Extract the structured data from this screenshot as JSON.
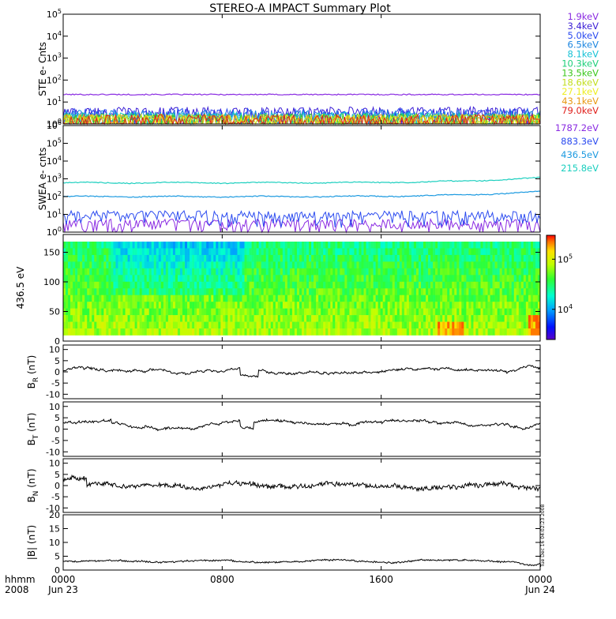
{
  "title": "STEREO-A IMPACT Summary Plot",
  "chart_data": [
    {
      "type": "line",
      "name": "ste",
      "ylabel": "STE e- Cnts",
      "yscale": "log",
      "ylim": [
        1,
        100000
      ],
      "yticks": [
        {
          "base": "10",
          "exp": "0"
        },
        {
          "base": "10",
          "exp": "1"
        },
        {
          "base": "10",
          "exp": "2"
        },
        {
          "base": "10",
          "exp": "3"
        },
        {
          "base": "10",
          "exp": "4"
        },
        {
          "base": "10",
          "exp": "5"
        }
      ],
      "series": [
        {
          "name": "1.9keV",
          "color": "#8a2be2",
          "level": 22
        },
        {
          "name": "3.4keV",
          "color": "#3b1fd6",
          "level": 2.2
        },
        {
          "name": "5.0keV",
          "color": "#2b4bf0",
          "level": 1.9
        },
        {
          "name": "6.5keV",
          "color": "#1c86e0",
          "level": 1.6
        },
        {
          "name": "8.1keV",
          "color": "#17c2d6",
          "level": 1.3
        },
        {
          "name": "10.3keV",
          "color": "#1ecf7a",
          "level": 1.15
        },
        {
          "name": "13.5keV",
          "color": "#3cc81e",
          "level": 1.1
        },
        {
          "name": "18.6keV",
          "color": "#c2de1e",
          "level": 1.05
        },
        {
          "name": "27.1keV",
          "color": "#eeee22",
          "level": 1.02
        },
        {
          "name": "43.1keV",
          "color": "#e89a14",
          "level": 1.01
        },
        {
          "name": "79.0keV",
          "color": "#e0201c",
          "level": 1.0
        }
      ]
    },
    {
      "type": "line",
      "name": "swea",
      "ylabel": "SWEA e- cnts",
      "yscale": "log",
      "ylim": [
        1,
        1000000
      ],
      "yticks": [
        {
          "base": "10",
          "exp": "0"
        },
        {
          "base": "10",
          "exp": "1"
        },
        {
          "base": "10",
          "exp": "2"
        },
        {
          "base": "10",
          "exp": "3"
        },
        {
          "base": "10",
          "exp": "4"
        },
        {
          "base": "10",
          "exp": "5"
        },
        {
          "base": "10",
          "exp": "6"
        }
      ],
      "series": [
        {
          "name": "1787.2eV",
          "color": "#8a2be2",
          "level": 2
        },
        {
          "name": "883.3eV",
          "color": "#2b4bf0",
          "level": 6
        },
        {
          "name": "436.5eV",
          "color": "#1c9ae0",
          "level": 100
        },
        {
          "name": "215.8eV",
          "color": "#1ccfbf",
          "level": 600
        }
      ]
    },
    {
      "type": "heatmap",
      "name": "pad",
      "ylabel": "436.5 eV",
      "ylim": [
        0,
        180
      ],
      "yticks": [
        "0",
        "50",
        "100",
        "150"
      ],
      "colorbar": {
        "scale": "log",
        "range": [
          2500,
          300000
        ],
        "ticks": [
          {
            "base": "10",
            "exp": "4",
            "value": 10000
          },
          {
            "base": "10",
            "exp": "5",
            "value": 100000
          }
        ]
      }
    },
    {
      "type": "line",
      "name": "br",
      "ylabel": {
        "main": "B",
        "sub": "R",
        "unit": " (nT)"
      },
      "ylim": [
        -12,
        12
      ],
      "yticks": [
        "10",
        "5",
        "0",
        "-5",
        "-10"
      ],
      "color": "#000000"
    },
    {
      "type": "line",
      "name": "bt",
      "ylabel": {
        "main": "B",
        "sub": "T",
        "unit": " (nT)"
      },
      "ylim": [
        -12,
        12
      ],
      "yticks": [
        "10",
        "5",
        "0",
        "-5",
        "-10"
      ],
      "color": "#000000"
    },
    {
      "type": "line",
      "name": "bn",
      "ylabel": {
        "main": "B",
        "sub": "N",
        "unit": " (nT)"
      },
      "ylim": [
        -12,
        12
      ],
      "yticks": [
        "10",
        "5",
        "0",
        "-5",
        "-10"
      ],
      "color": "#000000"
    },
    {
      "type": "line",
      "name": "bmag",
      "ylabel": "|B| (nT)",
      "ylim": [
        0,
        20
      ],
      "yticks": [
        "20",
        "15",
        "10",
        "5",
        "0"
      ],
      "color": "#000000"
    }
  ],
  "xaxis": {
    "label_top": "hhmm",
    "label_bottom": "2008",
    "ticks": [
      {
        "time": "0000",
        "date": "Jun 23",
        "hour": 0
      },
      {
        "time": "0800",
        "date": "",
        "hour": 8
      },
      {
        "time": "1600",
        "date": "",
        "hour": 16
      },
      {
        "time": "0000",
        "date": "Jun 24",
        "hour": 24
      }
    ]
  },
  "stamp": "Tue Dec 16 04:02:23 2008"
}
